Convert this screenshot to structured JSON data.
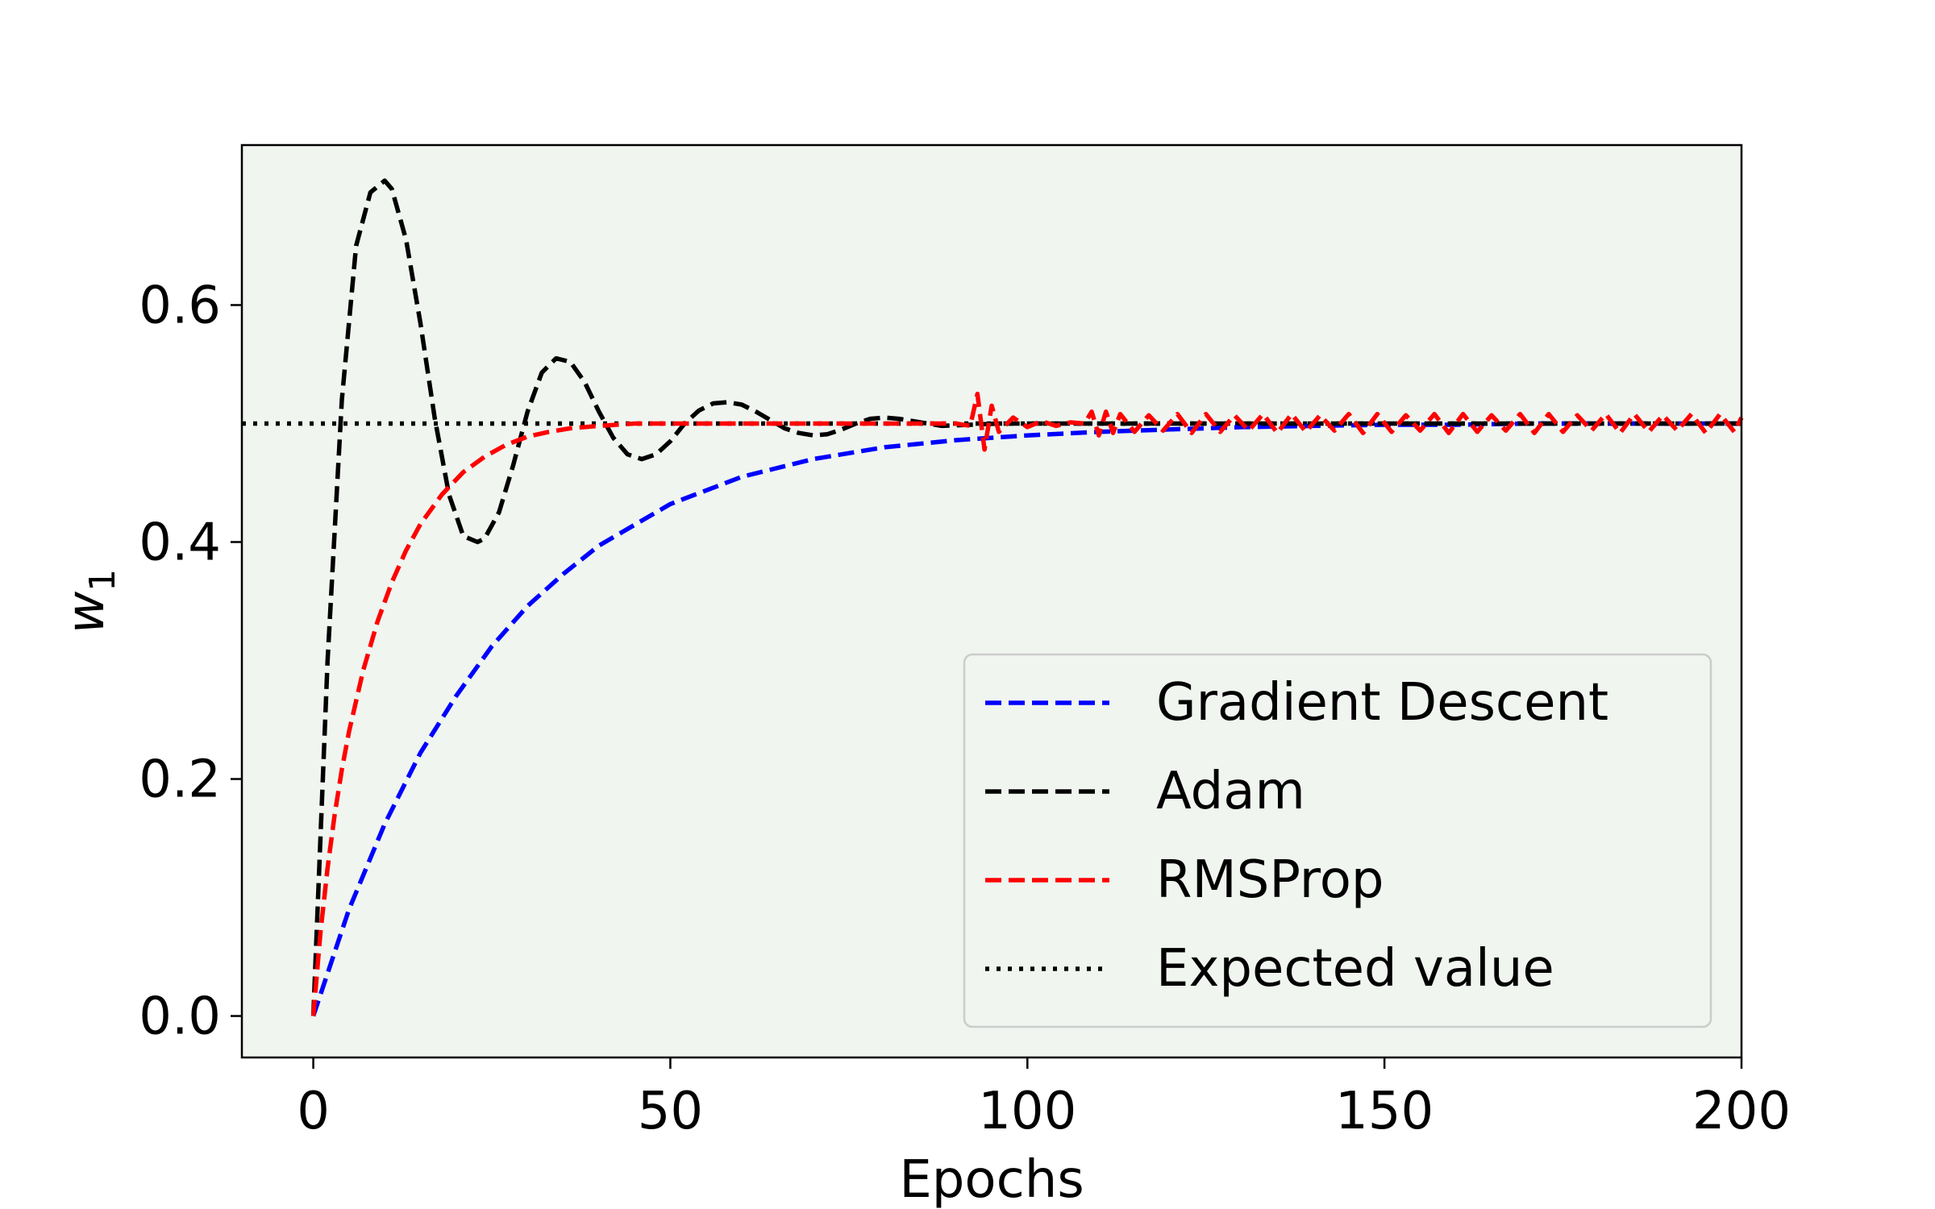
{
  "chart_data": {
    "type": "line",
    "title": "",
    "xlabel": "Epochs",
    "ylabel_main": "w",
    "ylabel_sub": "1",
    "xlim": [
      -10,
      200
    ],
    "ylim": [
      -0.035,
      0.735
    ],
    "xticks": [
      0,
      50,
      100,
      150,
      200
    ],
    "xtick_labels": [
      "0",
      "50",
      "100",
      "150",
      "200"
    ],
    "yticks": [
      0.0,
      0.2,
      0.4,
      0.6
    ],
    "ytick_labels": [
      "0.0",
      "0.2",
      "0.4",
      "0.6"
    ],
    "grid": false,
    "legend_position": "lower-right",
    "plot_background": "#f0f5f0",
    "series": [
      {
        "name": "Gradient Descent",
        "color": "#0000ff",
        "style": "dashed",
        "x": [
          0,
          5,
          10,
          15,
          20,
          25,
          30,
          35,
          40,
          50,
          60,
          70,
          80,
          90,
          100,
          110,
          120,
          130,
          140,
          150,
          160,
          170,
          180,
          190,
          200
        ],
        "y": [
          0.0,
          0.09,
          0.162,
          0.222,
          0.27,
          0.312,
          0.346,
          0.373,
          0.397,
          0.432,
          0.455,
          0.47,
          0.48,
          0.486,
          0.49,
          0.493,
          0.495,
          0.497,
          0.498,
          0.499,
          0.499,
          0.5,
          0.5,
          0.5,
          0.5
        ]
      },
      {
        "name": "Adam",
        "color": "#000000",
        "style": "dashed",
        "x": [
          0,
          2,
          4,
          6,
          8,
          10,
          11,
          13,
          15,
          17,
          19,
          21,
          23,
          24,
          26,
          28,
          30,
          32,
          34,
          36,
          38,
          40,
          42,
          44,
          46,
          48,
          50,
          52,
          54,
          56,
          58,
          60,
          62,
          64,
          66,
          68,
          70,
          72,
          74,
          76,
          78,
          80,
          82,
          85,
          88,
          92,
          96,
          100,
          110,
          120,
          130,
          140,
          150,
          160,
          170,
          180,
          190,
          200
        ],
        "y": [
          0.0,
          0.3,
          0.52,
          0.65,
          0.695,
          0.705,
          0.698,
          0.655,
          0.585,
          0.505,
          0.44,
          0.405,
          0.4,
          0.403,
          0.425,
          0.465,
          0.51,
          0.543,
          0.555,
          0.552,
          0.535,
          0.51,
          0.488,
          0.474,
          0.47,
          0.474,
          0.485,
          0.5,
          0.511,
          0.517,
          0.518,
          0.516,
          0.51,
          0.503,
          0.496,
          0.492,
          0.49,
          0.491,
          0.495,
          0.5,
          0.504,
          0.505,
          0.504,
          0.501,
          0.498,
          0.499,
          0.5,
          0.5,
          0.5,
          0.5,
          0.5,
          0.5,
          0.5,
          0.5,
          0.5,
          0.5,
          0.5,
          0.5
        ]
      },
      {
        "name": "RMSProp",
        "color": "#ff0000",
        "style": "dashed",
        "x": [
          0,
          1,
          2,
          3,
          4,
          5,
          7,
          9,
          11,
          13,
          15,
          18,
          21,
          24,
          27,
          30,
          33,
          36,
          40,
          45,
          50,
          60,
          70,
          80,
          90,
          92,
          93,
          94,
          95,
          96,
          98,
          100,
          102,
          104,
          106,
          108,
          109,
          110,
          111,
          112,
          113,
          115,
          117,
          119,
          121,
          123,
          125,
          127,
          129,
          131,
          133,
          135,
          137,
          139,
          141,
          143,
          145,
          147,
          149,
          151,
          153,
          155,
          157,
          159,
          161,
          163,
          165,
          167,
          169,
          171,
          173,
          175,
          177,
          179,
          181,
          183,
          185,
          187,
          189,
          191,
          193,
          195,
          197,
          199,
          200
        ],
        "y": [
          0.0,
          0.07,
          0.125,
          0.17,
          0.208,
          0.24,
          0.292,
          0.333,
          0.366,
          0.393,
          0.415,
          0.44,
          0.459,
          0.472,
          0.482,
          0.489,
          0.493,
          0.496,
          0.498,
          0.5,
          0.5,
          0.5,
          0.5,
          0.5,
          0.5,
          0.498,
          0.525,
          0.478,
          0.515,
          0.493,
          0.505,
          0.497,
          0.502,
          0.498,
          0.501,
          0.5,
          0.51,
          0.49,
          0.51,
          0.492,
          0.508,
          0.493,
          0.507,
          0.494,
          0.508,
          0.492,
          0.508,
          0.493,
          0.507,
          0.494,
          0.508,
          0.492,
          0.508,
          0.493,
          0.507,
          0.494,
          0.508,
          0.492,
          0.508,
          0.493,
          0.507,
          0.494,
          0.508,
          0.492,
          0.508,
          0.493,
          0.507,
          0.494,
          0.508,
          0.492,
          0.508,
          0.493,
          0.507,
          0.494,
          0.508,
          0.492,
          0.508,
          0.493,
          0.507,
          0.494,
          0.508,
          0.492,
          0.508,
          0.493,
          0.505
        ]
      },
      {
        "name": "Expected value",
        "color": "#000000",
        "style": "dotted",
        "x": [
          -10,
          200
        ],
        "y": [
          0.5,
          0.5
        ]
      }
    ]
  }
}
